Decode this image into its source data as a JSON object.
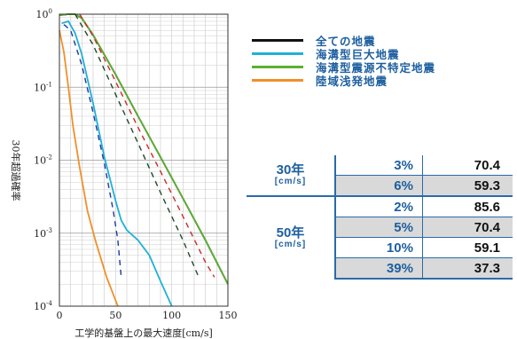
{
  "chart_data": {
    "type": "line",
    "xlabel": "工学的基盤上の最大速度[cm/s]",
    "ylabel": "30年超過確率",
    "xlim": [
      0,
      150
    ],
    "ylim_log": [
      0.0001,
      1
    ],
    "x_ticks": [
      "0",
      "50",
      "100",
      "150"
    ],
    "y_ticks": [
      {
        "base": "10",
        "exp": "0"
      },
      {
        "base": "10",
        "exp": "-1"
      },
      {
        "base": "10",
        "exp": "-2"
      },
      {
        "base": "10",
        "exp": "-3"
      },
      {
        "base": "10",
        "exp": "-4"
      }
    ],
    "grid": true,
    "legend_position": "right",
    "series": [
      {
        "name": "全ての地震",
        "color": "#111111",
        "style": "solid",
        "points": [
          [
            0,
            0.97
          ],
          [
            8,
            1
          ],
          [
            14,
            1
          ],
          [
            20,
            0.88
          ],
          [
            30,
            0.52
          ],
          [
            50,
            0.15
          ],
          [
            70,
            0.04
          ],
          [
            90,
            0.011
          ],
          [
            110,
            0.003
          ],
          [
            130,
            0.0008
          ],
          [
            150,
            0.0002
          ]
        ]
      },
      {
        "name": "海溝型巨大地震",
        "color": "#20b0d8",
        "style": "solid",
        "points": [
          [
            2,
            0.75
          ],
          [
            8,
            0.8
          ],
          [
            14,
            0.55
          ],
          [
            20,
            0.28
          ],
          [
            30,
            0.06
          ],
          [
            40,
            0.011
          ],
          [
            50,
            0.0028
          ],
          [
            55,
            0.0015
          ],
          [
            60,
            0.0011
          ],
          [
            70,
            0.0008
          ],
          [
            80,
            0.0005
          ],
          [
            90,
            0.00022
          ],
          [
            100,
            0.0001
          ]
        ]
      },
      {
        "name": "海溝型震源不特定地震",
        "color": "#5cb030",
        "style": "solid",
        "points": [
          [
            0,
            0.97
          ],
          [
            8,
            1
          ],
          [
            14,
            1
          ],
          [
            20,
            0.88
          ],
          [
            30,
            0.52
          ],
          [
            50,
            0.15
          ],
          [
            70,
            0.04
          ],
          [
            90,
            0.011
          ],
          [
            110,
            0.003
          ],
          [
            130,
            0.0008
          ],
          [
            150,
            0.0002
          ]
        ]
      },
      {
        "name": "陸域浅発地震",
        "color": "#f0902a",
        "style": "solid",
        "points": [
          [
            0,
            0.6
          ],
          [
            4,
            0.3
          ],
          [
            8,
            0.1
          ],
          [
            12,
            0.03
          ],
          [
            18,
            0.008
          ],
          [
            25,
            0.002
          ],
          [
            32,
            0.0008
          ],
          [
            42,
            0.00025
          ],
          [
            52,
            0.0001
          ]
        ]
      },
      {
        "name": "",
        "color": "#cc2a2a",
        "style": "dashed",
        "points": [
          [
            18,
            1
          ],
          [
            30,
            0.5
          ],
          [
            50,
            0.12
          ],
          [
            70,
            0.028
          ],
          [
            90,
            0.007
          ],
          [
            110,
            0.0017
          ],
          [
            130,
            0.0004
          ],
          [
            138,
            0.00025
          ]
        ]
      },
      {
        "name": "",
        "color": "#1a3aa0",
        "style": "dashed",
        "points": [
          [
            4,
            0.72
          ],
          [
            10,
            0.6
          ],
          [
            20,
            0.2
          ],
          [
            30,
            0.045
          ],
          [
            40,
            0.009
          ],
          [
            48,
            0.002
          ],
          [
            52,
            0.0008
          ],
          [
            55,
            0.00025
          ]
        ]
      },
      {
        "name": "",
        "color": "#1e4a2a",
        "style": "dashed",
        "points": [
          [
            14,
            1
          ],
          [
            30,
            0.38
          ],
          [
            50,
            0.08
          ],
          [
            70,
            0.017
          ],
          [
            90,
            0.0036
          ],
          [
            110,
            0.0008
          ],
          [
            124,
            0.00025
          ]
        ]
      }
    ]
  },
  "legend": [
    {
      "label": "全ての地震",
      "color": "#111111"
    },
    {
      "label": "海溝型巨大地震",
      "color": "#20b0d8"
    },
    {
      "label": "海溝型震源不特定地震",
      "color": "#5cb030"
    },
    {
      "label": "陸域浅発地震",
      "color": "#f0902a"
    }
  ],
  "table": {
    "group30": {
      "title": "30年",
      "unit": "[cm/s]"
    },
    "group50": {
      "title": "50年",
      "unit": "[cm/s]"
    },
    "rows": [
      {
        "pct": "3%",
        "val": "70.4"
      },
      {
        "pct": "6%",
        "val": "59.3"
      },
      {
        "pct": "2%",
        "val": "85.6"
      },
      {
        "pct": "5%",
        "val": "70.4"
      },
      {
        "pct": "10%",
        "val": "59.1"
      },
      {
        "pct": "39%",
        "val": "37.3"
      }
    ]
  }
}
